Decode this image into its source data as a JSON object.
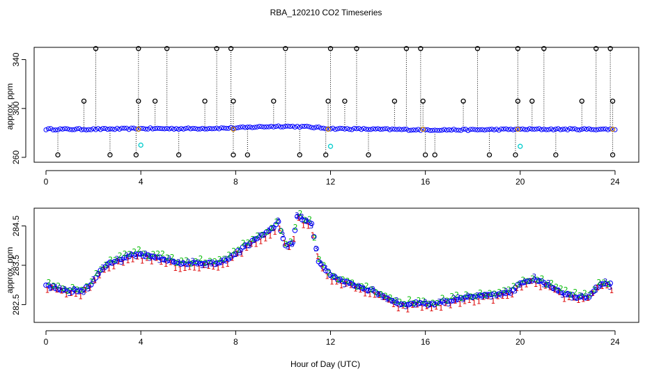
{
  "title": "RBA_120210  CO2 Timeseries",
  "colors": {
    "black": "#000000",
    "blue": "#0000ff",
    "cyan": "#00cccc",
    "red": "#dd0000",
    "green": "#00bb00",
    "navy": "#0000cc",
    "purple": "#9900aa",
    "orange": "#cc8800"
  },
  "chart_data": [
    {
      "type": "scatter",
      "name": "top-panel",
      "ylabel": "approx. ppm",
      "xlabel": "",
      "xlim": [
        -0.5,
        25.0
      ],
      "ylim": [
        256,
        350
      ],
      "xticks": [
        0,
        4,
        8,
        12,
        16,
        20,
        24
      ],
      "yticks": [
        260,
        300,
        340
      ],
      "baseline_description": "dense blue points near 283 ppm",
      "baseline": [
        [
          0,
          283.0
        ],
        [
          2,
          283.0
        ],
        [
          4,
          283.5
        ],
        [
          6,
          283.5
        ],
        [
          8,
          284.0
        ],
        [
          9,
          285.0
        ],
        [
          10,
          285.5
        ],
        [
          11,
          285.0
        ],
        [
          12,
          283.5
        ],
        [
          14,
          283.0
        ],
        [
          16,
          282.5
        ],
        [
          18,
          282.5
        ],
        [
          20,
          283.0
        ],
        [
          22,
          283.0
        ],
        [
          24,
          283.0
        ]
      ],
      "spikes_high": [
        2.1,
        3.9,
        5.1,
        7.2,
        7.8,
        10.1,
        12.0,
        13.1,
        15.2,
        15.8,
        18.2,
        19.9,
        21.0,
        23.2,
        23.8
      ],
      "spikes_mid": [
        1.6,
        3.9,
        4.6,
        6.7,
        7.9,
        9.6,
        11.9,
        12.6,
        14.7,
        15.9,
        17.6,
        19.9,
        20.5,
        22.6,
        23.9
      ],
      "spikes_low": [
        0.5,
        2.7,
        3.8,
        5.6,
        7.9,
        8.5,
        10.7,
        11.8,
        13.6,
        16.0,
        16.4,
        18.7,
        19.8,
        21.5,
        23.9
      ],
      "spike_values": {
        "high": 349,
        "mid": 306,
        "low": 262
      },
      "cyan_points": [
        [
          4.0,
          270
        ],
        [
          12.0,
          269
        ],
        [
          20.0,
          269
        ]
      ],
      "orange_points": [
        [
          3.9,
          283
        ],
        [
          7.9,
          283
        ],
        [
          11.9,
          283
        ],
        [
          15.9,
          283
        ],
        [
          19.9,
          283
        ],
        [
          23.9,
          283
        ]
      ]
    },
    {
      "type": "scatter",
      "name": "bottom-panel",
      "ylabel": "approx. ppm",
      "xlabel": "Hour of Day (UTC)",
      "xlim": [
        -0.5,
        25.0
      ],
      "ylim": [
        282.05,
        284.95
      ],
      "xticks": [
        0,
        4,
        8,
        12,
        16,
        20,
        24
      ],
      "yticks": [
        282.5,
        283.5,
        284.5
      ],
      "series": [
        {
          "name": "1",
          "symbol": "1",
          "color": "#dd0000"
        },
        {
          "name": "2",
          "symbol": "2",
          "color": "#00bb00"
        },
        {
          "name": "3",
          "symbol": "3",
          "color": "#0000cc"
        }
      ],
      "trend": [
        [
          0.0,
          283.0
        ],
        [
          0.3,
          282.95
        ],
        [
          0.8,
          282.85
        ],
        [
          1.5,
          282.85
        ],
        [
          1.9,
          283.0
        ],
        [
          2.2,
          283.3
        ],
        [
          2.6,
          283.55
        ],
        [
          3.2,
          283.65
        ],
        [
          3.8,
          283.8
        ],
        [
          4.2,
          283.75
        ],
        [
          4.8,
          283.7
        ],
        [
          5.5,
          283.55
        ],
        [
          6.5,
          283.55
        ],
        [
          7.3,
          283.55
        ],
        [
          7.8,
          283.7
        ],
        [
          8.3,
          283.95
        ],
        [
          8.8,
          284.15
        ],
        [
          9.4,
          284.35
        ],
        [
          9.8,
          284.6
        ],
        [
          10.1,
          284.0
        ],
        [
          10.4,
          284.05
        ],
        [
          10.6,
          284.75
        ],
        [
          10.9,
          284.65
        ],
        [
          11.2,
          284.55
        ],
        [
          11.5,
          283.6
        ],
        [
          12.0,
          283.25
        ],
        [
          12.5,
          283.1
        ],
        [
          13.2,
          282.95
        ],
        [
          14.0,
          282.8
        ],
        [
          14.6,
          282.6
        ],
        [
          15.0,
          282.5
        ],
        [
          15.8,
          282.55
        ],
        [
          16.2,
          282.5
        ],
        [
          17.0,
          282.6
        ],
        [
          18.0,
          282.7
        ],
        [
          18.8,
          282.75
        ],
        [
          19.6,
          282.8
        ],
        [
          20.0,
          283.05
        ],
        [
          20.6,
          283.15
        ],
        [
          21.2,
          283.0
        ],
        [
          21.8,
          282.8
        ],
        [
          22.4,
          282.7
        ],
        [
          22.9,
          282.7
        ],
        [
          23.2,
          282.95
        ],
        [
          23.6,
          283.05
        ],
        [
          23.9,
          283.0
        ]
      ]
    }
  ]
}
